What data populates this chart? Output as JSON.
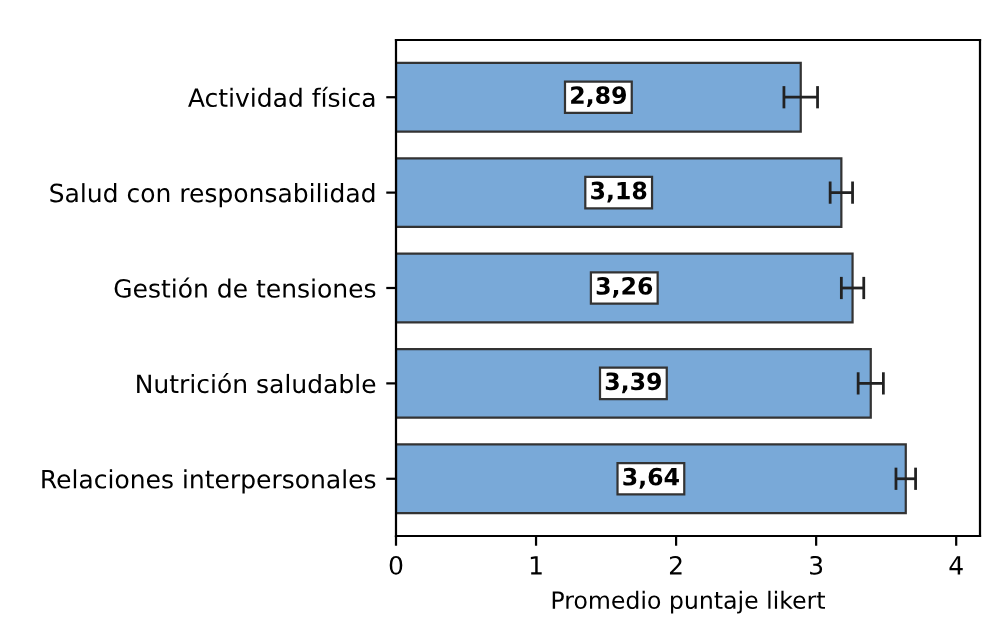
{
  "chart_data": {
    "type": "bar",
    "orientation": "horizontal",
    "xlabel": "Promedio puntaje likert",
    "categories": [
      "Actividad física",
      "Salud con responsabilidad",
      "Gestión de tensiones",
      "Nutrición saludable",
      "Relaciones interpersonales"
    ],
    "values": [
      2.89,
      3.18,
      3.26,
      3.39,
      3.64
    ],
    "errors": [
      0.12,
      0.08,
      0.08,
      0.09,
      0.07
    ],
    "value_labels": [
      "2,89",
      "3,18",
      "3,26",
      "3,39",
      "3,64"
    ],
    "color": "#79a9d8",
    "xlim": [
      0,
      4.17
    ],
    "xticks": [
      0,
      1,
      2,
      3,
      4
    ],
    "grid": false
  }
}
